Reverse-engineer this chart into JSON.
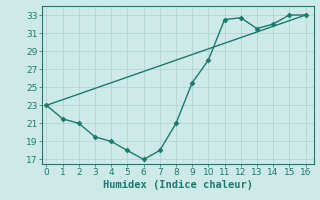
{
  "line1_x": [
    0,
    16
  ],
  "line1_y": [
    23,
    33
  ],
  "line2_x": [
    0,
    1,
    2,
    3,
    4,
    5,
    6,
    7,
    8,
    9,
    10,
    11,
    12,
    13,
    14,
    15,
    16
  ],
  "line2_y": [
    23,
    21.5,
    21,
    19.5,
    19,
    18,
    17,
    18,
    21,
    25.5,
    28,
    32.5,
    32.7,
    31.5,
    32,
    33,
    33
  ],
  "line_color": "#1a7a6e",
  "marker": "D",
  "markersize": 2.5,
  "linewidth": 1.0,
  "xlim": [
    -0.3,
    16.5
  ],
  "ylim": [
    16.5,
    34
  ],
  "yticks": [
    17,
    19,
    21,
    23,
    25,
    27,
    29,
    31,
    33
  ],
  "xticks": [
    0,
    1,
    2,
    3,
    4,
    5,
    6,
    7,
    8,
    9,
    10,
    11,
    12,
    13,
    14,
    15,
    16
  ],
  "xlabel": "Humidex (Indice chaleur)",
  "background_color": "#ceeae8",
  "grid_color": "#b0d0cc",
  "tick_fontsize": 6.5,
  "xlabel_fontsize": 7.5
}
